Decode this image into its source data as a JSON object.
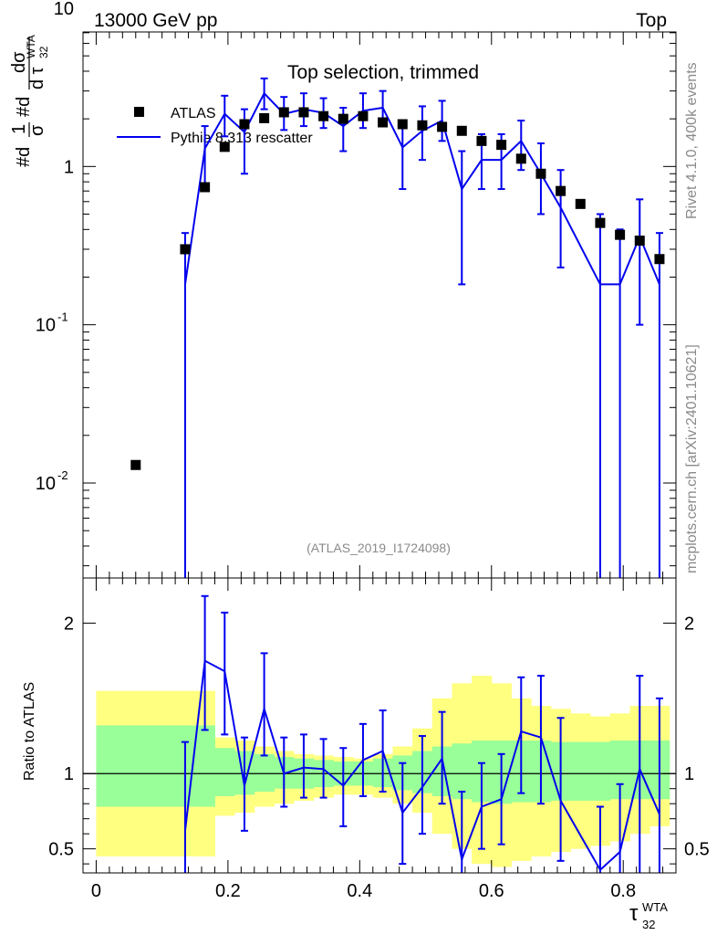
{
  "header": {
    "left": "13000 GeV pp",
    "right": "Top"
  },
  "side_labels": {
    "rivet": "Rivet 4.1.0,  400k events",
    "source": "mcplots.cern.ch [arXiv:2401.10621]"
  },
  "chart_data": {
    "type": "scatter",
    "title": "Top selection, trimmed",
    "watermark": "(ATLAS_2019_I1724098)",
    "ylabel_main": "#d(1/σ) #dσ/dτ32WTA",
    "ylabel_main_parts": {
      "a": "#d",
      "b": "1",
      "c": "σ",
      "d": "#d",
      "e": "dσ",
      "f": "d τ",
      "g": "WTA",
      "h": "32"
    },
    "ylabel_ratio": "Ratio to ATLAS",
    "xlabel": "τ32 WTA",
    "xlabel_parts": {
      "main": "τ",
      "sup": "WTA",
      "sub": "32"
    },
    "x_range": [
      -0.02,
      0.88
    ],
    "y_main_range_log10": [
      -2.6,
      0.85
    ],
    "y_ratio_range": [
      0.34,
      2.3
    ],
    "x_ticks": [
      "0",
      "0.2",
      "0.4",
      "0.6",
      "0.8"
    ],
    "y_main_ticks": [
      {
        "base": "10",
        "exp": "-2",
        "value": 0.01
      },
      {
        "base": "10",
        "exp": "-1",
        "value": 0.1
      },
      {
        "base": "1",
        "exp": "",
        "value": 1
      },
      {
        "base": "10",
        "exp": "",
        "value": 10
      }
    ],
    "y_ratio_ticks": [
      "0.5",
      "1",
      "2"
    ],
    "legend": {
      "position": "top-left",
      "entries": [
        "ATLAS",
        "Pythia 8.313 rescatter"
      ]
    },
    "series": [
      {
        "name": "ATLAS",
        "color": "#000000",
        "x": [
          0.06,
          0.135,
          0.165,
          0.195,
          0.225,
          0.255,
          0.285,
          0.315,
          0.345,
          0.375,
          0.405,
          0.435,
          0.465,
          0.495,
          0.525,
          0.555,
          0.585,
          0.615,
          0.645,
          0.675,
          0.705,
          0.735,
          0.765,
          0.795,
          0.825,
          0.855
        ],
        "y": [
          0.013,
          0.3,
          0.74,
          1.33,
          1.85,
          2.02,
          2.2,
          2.2,
          2.08,
          2.0,
          2.08,
          1.9,
          1.85,
          1.82,
          1.78,
          1.68,
          1.45,
          1.37,
          1.12,
          0.9,
          0.7,
          0.58,
          0.44,
          0.37,
          0.34,
          0.26
        ]
      },
      {
        "name": "Pythia 8.313 rescatter",
        "color": "#0000ee",
        "x": [
          0.135,
          0.165,
          0.195,
          0.225,
          0.255,
          0.285,
          0.315,
          0.345,
          0.375,
          0.405,
          0.435,
          0.465,
          0.495,
          0.525,
          0.555,
          0.585,
          0.615,
          0.645,
          0.675,
          0.705,
          0.765,
          0.795,
          0.825,
          0.855
        ],
        "y": [
          0.18,
          1.3,
          2.15,
          1.65,
          2.9,
          2.15,
          2.3,
          2.18,
          1.8,
          2.25,
          2.35,
          1.32,
          1.68,
          1.95,
          0.72,
          1.1,
          1.1,
          1.45,
          0.9,
          0.55,
          0.18,
          0.18,
          0.36,
          0.18
        ],
        "y_lo": [
          0.0,
          0.74,
          1.55,
          0.9,
          2.3,
          1.7,
          1.8,
          1.75,
          1.25,
          1.75,
          1.85,
          0.72,
          1.1,
          1.45,
          0.18,
          0.72,
          0.72,
          0.95,
          0.5,
          0.23,
          0.0,
          0.0,
          0.1,
          0.0
        ],
        "y_hi": [
          0.38,
          1.8,
          2.8,
          2.3,
          3.6,
          2.75,
          2.9,
          2.7,
          2.35,
          2.9,
          3.0,
          1.95,
          2.4,
          2.6,
          1.25,
          1.6,
          1.6,
          1.95,
          1.4,
          0.95,
          0.5,
          0.4,
          0.62,
          0.38
        ]
      }
    ],
    "ratio": {
      "x": [
        0.135,
        0.165,
        0.195,
        0.225,
        0.255,
        0.285,
        0.315,
        0.345,
        0.375,
        0.405,
        0.435,
        0.465,
        0.495,
        0.525,
        0.555,
        0.585,
        0.615,
        0.645,
        0.675,
        0.705,
        0.765,
        0.795,
        0.825,
        0.855
      ],
      "y": [
        0.62,
        1.75,
        1.68,
        0.92,
        1.43,
        1.0,
        1.04,
        1.03,
        0.92,
        1.09,
        1.15,
        0.74,
        0.91,
        1.1,
        0.43,
        0.78,
        0.83,
        1.28,
        1.24,
        0.82,
        0.36,
        0.48,
        1.03,
        0.73
      ],
      "y_lo": [
        0.0,
        1.29,
        1.26,
        0.62,
        1.12,
        0.78,
        0.84,
        0.84,
        0.65,
        0.85,
        0.88,
        0.4,
        0.6,
        0.8,
        0.0,
        0.5,
        0.53,
        0.87,
        0.8,
        0.42,
        0.0,
        0.0,
        0.3,
        0.0
      ],
      "y_hi": [
        1.21,
        2.18,
        2.07,
        1.24,
        1.8,
        1.24,
        1.26,
        1.23,
        1.17,
        1.33,
        1.42,
        1.07,
        1.25,
        1.41,
        0.88,
        1.07,
        1.13,
        1.64,
        1.65,
        1.37,
        0.78,
        0.93,
        1.65,
        1.5
      ]
    },
    "uncertainty_bands": {
      "edges": [
        0.0,
        0.15,
        0.18,
        0.21,
        0.24,
        0.27,
        0.3,
        0.33,
        0.36,
        0.39,
        0.42,
        0.45,
        0.48,
        0.51,
        0.54,
        0.57,
        0.6,
        0.63,
        0.66,
        0.69,
        0.72,
        0.75,
        0.78,
        0.81,
        0.84,
        0.87
      ],
      "inner": {
        "color": "#99ff99",
        "lo": [
          0.78,
          0.78,
          0.85,
          0.86,
          0.88,
          0.9,
          0.9,
          0.91,
          0.92,
          0.92,
          0.91,
          0.89,
          0.87,
          0.85,
          0.83,
          0.81,
          0.8,
          0.81,
          0.81,
          0.82,
          0.82,
          0.82,
          0.83,
          0.83,
          0.83
        ],
        "hi": [
          1.32,
          1.32,
          1.17,
          1.15,
          1.13,
          1.11,
          1.1,
          1.09,
          1.08,
          1.08,
          1.1,
          1.12,
          1.15,
          1.18,
          1.2,
          1.22,
          1.22,
          1.22,
          1.22,
          1.21,
          1.21,
          1.21,
          1.22,
          1.22,
          1.22
        ]
      },
      "outer": {
        "color": "#ffff80",
        "lo": [
          0.45,
          0.45,
          0.72,
          0.74,
          0.78,
          0.8,
          0.82,
          0.84,
          0.86,
          0.86,
          0.84,
          0.8,
          0.74,
          0.6,
          0.5,
          0.4,
          0.38,
          0.42,
          0.45,
          0.48,
          0.5,
          0.52,
          0.55,
          0.6,
          0.65
        ],
        "hi": [
          1.55,
          1.55,
          1.24,
          1.22,
          1.18,
          1.15,
          1.13,
          1.12,
          1.11,
          1.1,
          1.13,
          1.18,
          1.3,
          1.5,
          1.6,
          1.65,
          1.6,
          1.5,
          1.45,
          1.43,
          1.4,
          1.38,
          1.4,
          1.45,
          1.45
        ]
      }
    }
  }
}
